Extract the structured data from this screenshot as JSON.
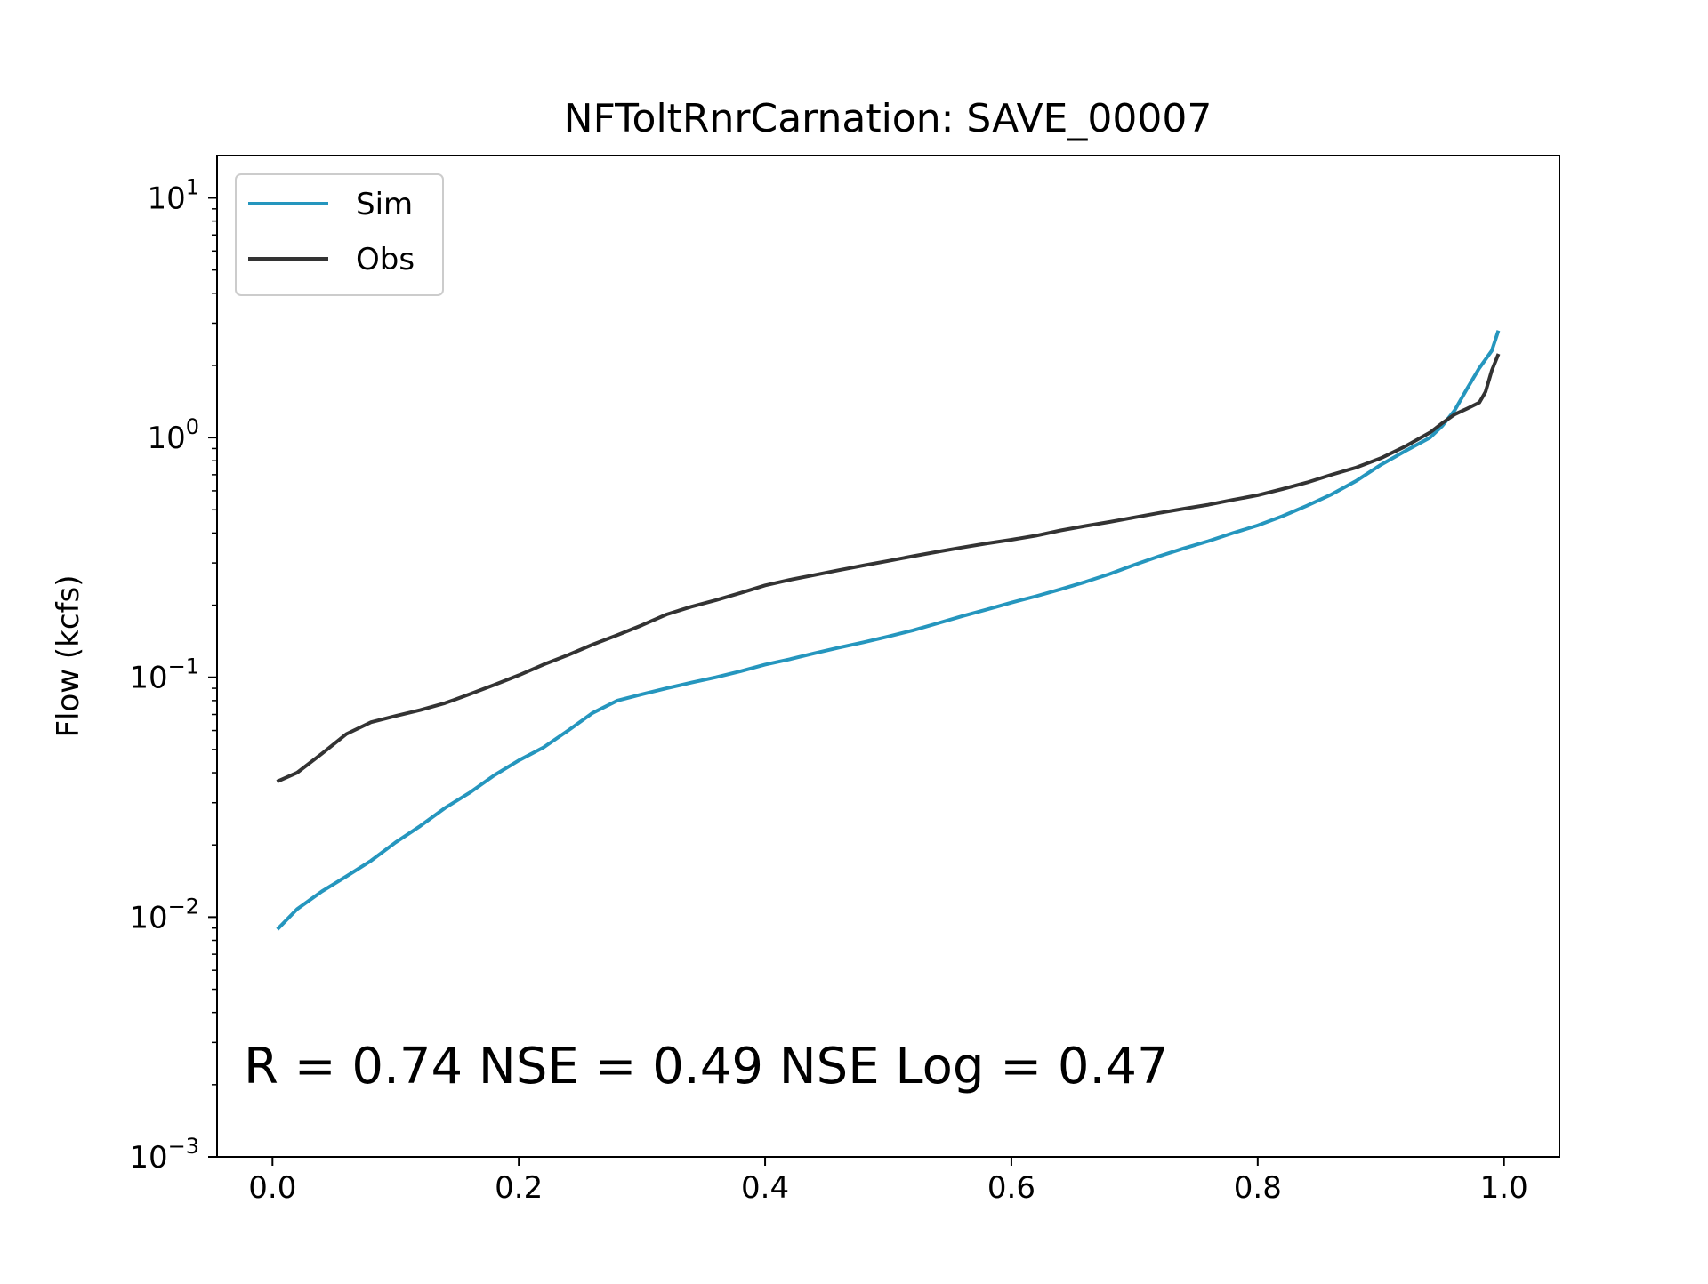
{
  "chart_data": {
    "type": "line",
    "title": "NFToltRnrCarnation: SAVE_00007",
    "xlabel": "",
    "ylabel": "Flow (kcfs)",
    "xlim": [
      -0.045,
      1.045
    ],
    "ylim": [
      0.001,
      15
    ],
    "yscale": "log",
    "x_ticks": [
      {
        "value": 0.0,
        "label": "0.0"
      },
      {
        "value": 0.2,
        "label": "0.2"
      },
      {
        "value": 0.4,
        "label": "0.4"
      },
      {
        "value": 0.6,
        "label": "0.6"
      },
      {
        "value": 0.8,
        "label": "0.8"
      },
      {
        "value": 1.0,
        "label": "1.0"
      }
    ],
    "y_ticks": [
      {
        "value": 0.001,
        "base": "10",
        "exp": "−3"
      },
      {
        "value": 0.01,
        "base": "10",
        "exp": "−2"
      },
      {
        "value": 0.1,
        "base": "10",
        "exp": "−1"
      },
      {
        "value": 1,
        "base": "10",
        "exp": "0"
      },
      {
        "value": 10,
        "base": "10",
        "exp": "1"
      }
    ],
    "grid": false,
    "legend_position": "upper-left",
    "annotation": "R = 0.74  NSE = 0.49  NSE Log = 0.47",
    "series": [
      {
        "name": "Sim",
        "color": "#2596be",
        "x": [
          0.005,
          0.02,
          0.04,
          0.06,
          0.08,
          0.1,
          0.12,
          0.14,
          0.16,
          0.18,
          0.2,
          0.22,
          0.24,
          0.26,
          0.28,
          0.3,
          0.32,
          0.34,
          0.36,
          0.38,
          0.4,
          0.42,
          0.44,
          0.46,
          0.48,
          0.5,
          0.52,
          0.54,
          0.56,
          0.58,
          0.6,
          0.62,
          0.64,
          0.66,
          0.68,
          0.7,
          0.72,
          0.74,
          0.76,
          0.78,
          0.8,
          0.82,
          0.84,
          0.86,
          0.88,
          0.9,
          0.92,
          0.94,
          0.95,
          0.96,
          0.97,
          0.98,
          0.99,
          0.995
        ],
        "y": [
          0.009,
          0.0108,
          0.0128,
          0.0148,
          0.0172,
          0.0205,
          0.024,
          0.0285,
          0.033,
          0.039,
          0.045,
          0.051,
          0.06,
          0.071,
          0.08,
          0.085,
          0.09,
          0.095,
          0.1,
          0.106,
          0.113,
          0.119,
          0.126,
          0.133,
          0.14,
          0.148,
          0.157,
          0.168,
          0.18,
          0.192,
          0.205,
          0.218,
          0.233,
          0.25,
          0.27,
          0.295,
          0.32,
          0.345,
          0.37,
          0.4,
          0.43,
          0.47,
          0.52,
          0.58,
          0.66,
          0.77,
          0.88,
          1.0,
          1.12,
          1.3,
          1.6,
          1.95,
          2.3,
          2.75
        ]
      },
      {
        "name": "Obs",
        "color": "#333333",
        "x": [
          0.005,
          0.02,
          0.04,
          0.06,
          0.08,
          0.1,
          0.12,
          0.14,
          0.16,
          0.18,
          0.2,
          0.22,
          0.24,
          0.26,
          0.28,
          0.3,
          0.32,
          0.34,
          0.36,
          0.38,
          0.4,
          0.42,
          0.44,
          0.46,
          0.48,
          0.5,
          0.52,
          0.54,
          0.56,
          0.58,
          0.6,
          0.62,
          0.64,
          0.66,
          0.68,
          0.7,
          0.72,
          0.74,
          0.76,
          0.78,
          0.8,
          0.82,
          0.84,
          0.86,
          0.88,
          0.9,
          0.92,
          0.94,
          0.95,
          0.96,
          0.97,
          0.98,
          0.985,
          0.99,
          0.995
        ],
        "y": [
          0.037,
          0.04,
          0.048,
          0.058,
          0.065,
          0.069,
          0.073,
          0.078,
          0.085,
          0.093,
          0.102,
          0.113,
          0.124,
          0.137,
          0.15,
          0.165,
          0.183,
          0.197,
          0.21,
          0.225,
          0.242,
          0.255,
          0.267,
          0.28,
          0.293,
          0.306,
          0.32,
          0.334,
          0.348,
          0.362,
          0.375,
          0.39,
          0.41,
          0.428,
          0.445,
          0.465,
          0.485,
          0.505,
          0.525,
          0.55,
          0.575,
          0.61,
          0.65,
          0.7,
          0.75,
          0.82,
          0.92,
          1.05,
          1.15,
          1.25,
          1.32,
          1.4,
          1.55,
          1.9,
          2.2
        ]
      }
    ]
  }
}
